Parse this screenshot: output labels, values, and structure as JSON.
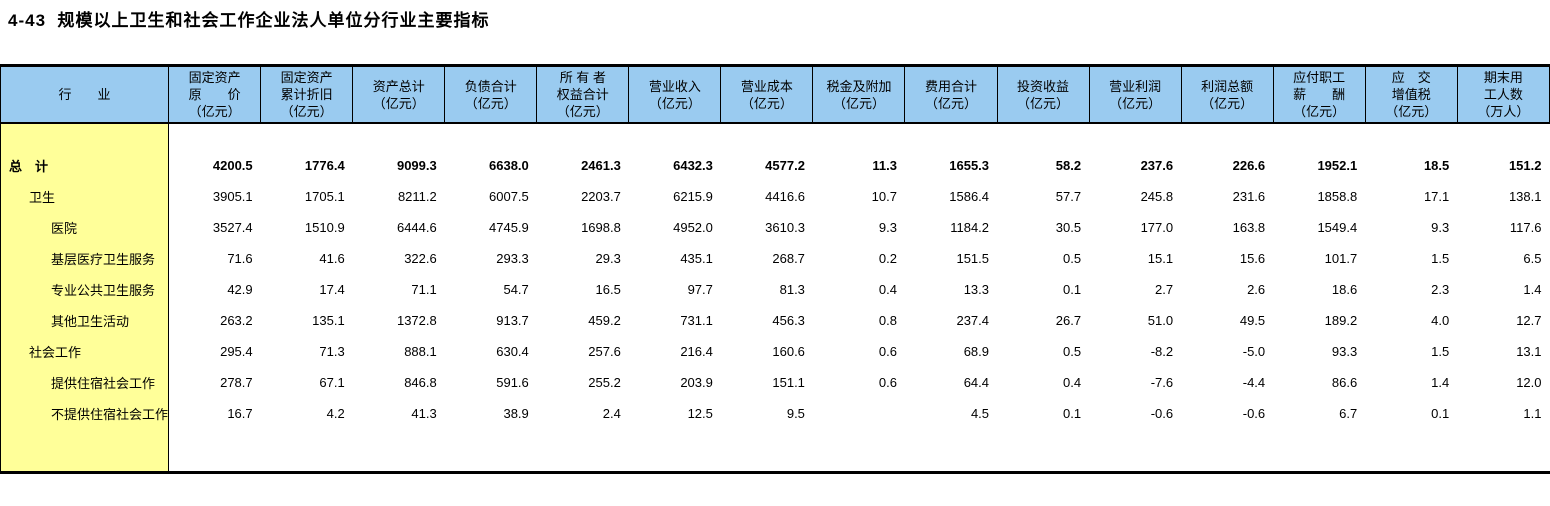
{
  "page": {
    "title": "4-43  规模以上卫生和社会工作企业法人单位分行业主要指标"
  },
  "colors": {
    "header_bg": "#9ACBF0",
    "label_bg": "#FFFF99",
    "border": "#000000"
  },
  "table": {
    "industry_header": "行　　业",
    "columns": [
      {
        "label": "固定资产\n原　　价\n（亿元）"
      },
      {
        "label": "固定资产\n累计折旧\n（亿元）"
      },
      {
        "label": "资产总计\n（亿元）"
      },
      {
        "label": "负债合计\n（亿元）"
      },
      {
        "label": "所 有 者\n权益合计\n（亿元）"
      },
      {
        "label": "营业收入\n（亿元）"
      },
      {
        "label": "营业成本\n（亿元）"
      },
      {
        "label": "税金及附加\n（亿元）"
      },
      {
        "label": "费用合计\n（亿元）"
      },
      {
        "label": "投资收益\n（亿元）"
      },
      {
        "label": "营业利润\n（亿元）"
      },
      {
        "label": "利润总额\n（亿元）"
      },
      {
        "label": "应付职工\n薪　　酬\n（亿元）"
      },
      {
        "label": "应　交\n增值税\n（亿元）"
      },
      {
        "label": "期末用\n工人数\n（万人）"
      }
    ],
    "rows": [
      {
        "label": "总　计",
        "indent": 0,
        "bold": true,
        "values": [
          "4200.5",
          "1776.4",
          "9099.3",
          "6638.0",
          "2461.3",
          "6432.3",
          "4577.2",
          "11.3",
          "1655.3",
          "58.2",
          "237.6",
          "226.6",
          "1952.1",
          "18.5",
          "151.2"
        ]
      },
      {
        "label": "卫生",
        "indent": 1,
        "bold": false,
        "values": [
          "3905.1",
          "1705.1",
          "8211.2",
          "6007.5",
          "2203.7",
          "6215.9",
          "4416.6",
          "10.7",
          "1586.4",
          "57.7",
          "245.8",
          "231.6",
          "1858.8",
          "17.1",
          "138.1"
        ]
      },
      {
        "label": "医院",
        "indent": 2,
        "bold": false,
        "values": [
          "3527.4",
          "1510.9",
          "6444.6",
          "4745.9",
          "1698.8",
          "4952.0",
          "3610.3",
          "9.3",
          "1184.2",
          "30.5",
          "177.0",
          "163.8",
          "1549.4",
          "9.3",
          "117.6"
        ]
      },
      {
        "label": "基层医疗卫生服务",
        "indent": 2,
        "bold": false,
        "values": [
          "71.6",
          "41.6",
          "322.6",
          "293.3",
          "29.3",
          "435.1",
          "268.7",
          "0.2",
          "151.5",
          "0.5",
          "15.1",
          "15.6",
          "101.7",
          "1.5",
          "6.5"
        ]
      },
      {
        "label": "专业公共卫生服务",
        "indent": 2,
        "bold": false,
        "values": [
          "42.9",
          "17.4",
          "71.1",
          "54.7",
          "16.5",
          "97.7",
          "81.3",
          "0.4",
          "13.3",
          "0.1",
          "2.7",
          "2.6",
          "18.6",
          "2.3",
          "1.4"
        ]
      },
      {
        "label": "其他卫生活动",
        "indent": 2,
        "bold": false,
        "values": [
          "263.2",
          "135.1",
          "1372.8",
          "913.7",
          "459.2",
          "731.1",
          "456.3",
          "0.8",
          "237.4",
          "26.7",
          "51.0",
          "49.5",
          "189.2",
          "4.0",
          "12.7"
        ]
      },
      {
        "label": "社会工作",
        "indent": 1,
        "bold": false,
        "values": [
          "295.4",
          "71.3",
          "888.1",
          "630.4",
          "257.6",
          "216.4",
          "160.6",
          "0.6",
          "68.9",
          "0.5",
          "-8.2",
          "-5.0",
          "93.3",
          "1.5",
          "13.1"
        ]
      },
      {
        "label": "提供住宿社会工作",
        "indent": 2,
        "bold": false,
        "values": [
          "278.7",
          "67.1",
          "846.8",
          "591.6",
          "255.2",
          "203.9",
          "151.1",
          "0.6",
          "64.4",
          "0.4",
          "-7.6",
          "-4.4",
          "86.6",
          "1.4",
          "12.0"
        ]
      },
      {
        "label": "不提供住宿社会工作",
        "indent": 2,
        "bold": false,
        "values": [
          "16.7",
          "4.2",
          "41.3",
          "38.9",
          "2.4",
          "12.5",
          "9.5",
          "",
          "4.5",
          "0.1",
          "-0.6",
          "-0.6",
          "6.7",
          "0.1",
          "1.1"
        ]
      }
    ]
  }
}
